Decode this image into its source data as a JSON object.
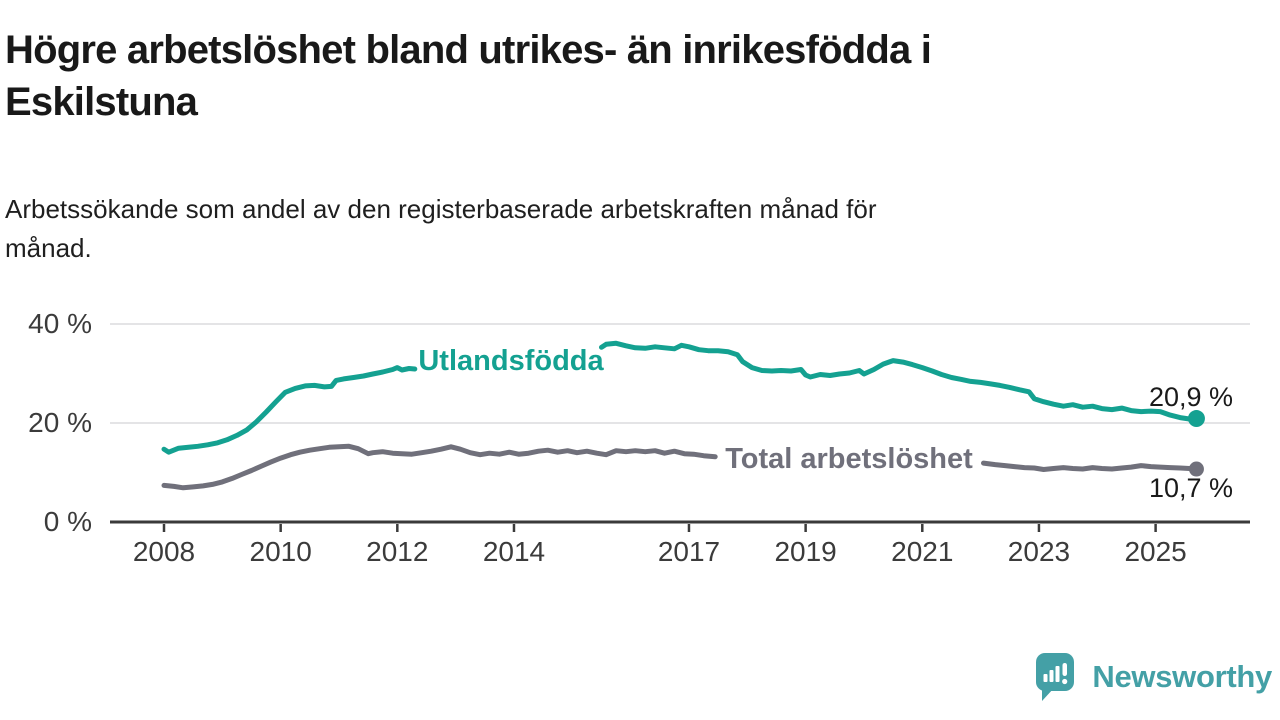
{
  "header": {
    "title_lines": [
      "Högre arbetslöshet bland utrikes- än inrikesfödda i",
      "Eskilstuna"
    ],
    "subtitle_lines": [
      "Arbetssökande som andel av den registerbaserade arbetskraften månad för",
      "månad."
    ]
  },
  "footer": {
    "brand": "Newsworthy",
    "brand_color": "#44a0a6",
    "icon": "newsworthy-speech-bubble-chart-icon"
  },
  "chart_data": {
    "type": "line",
    "unit": "%",
    "title": "Högre arbetslöshet bland utrikes- än inrikesfödda i Eskilstuna",
    "subtitle": "Arbetssökande som andel av den registerbaserade arbetskraften månad för månad.",
    "legend_position": "inline-labels",
    "grid": true,
    "x_axis": {
      "range_years": [
        2007.1,
        2026.6
      ],
      "ticks": [
        {
          "label": "2008",
          "year": 2008
        },
        {
          "label": "2010",
          "year": 2010
        },
        {
          "label": "2012",
          "year": 2012
        },
        {
          "label": "2014",
          "year": 2014
        },
        {
          "label": "2017",
          "year": 2017
        },
        {
          "label": "2019",
          "year": 2019
        },
        {
          "label": "2021",
          "year": 2021
        },
        {
          "label": "2023",
          "year": 2023
        },
        {
          "label": "2025",
          "year": 2025
        }
      ]
    },
    "y_axis": {
      "range": [
        0,
        44
      ],
      "ticks": [
        {
          "label": "0 %",
          "value": 0
        },
        {
          "label": "20 %",
          "value": 20
        },
        {
          "label": "40 %",
          "value": 40
        }
      ]
    },
    "series": [
      {
        "name": "Utlandsfödda",
        "color": "#14a191",
        "end_label": "20,9 %",
        "end_value": 20.9,
        "segments": [
          [
            [
              2008.0,
              14.7
            ],
            [
              2008.08,
              14.1
            ],
            [
              2008.25,
              14.9
            ],
            [
              2008.42,
              15.1
            ],
            [
              2008.58,
              15.3
            ],
            [
              2008.75,
              15.6
            ],
            [
              2008.92,
              16.0
            ],
            [
              2009.08,
              16.6
            ],
            [
              2009.25,
              17.5
            ],
            [
              2009.42,
              18.6
            ],
            [
              2009.58,
              20.2
            ],
            [
              2009.75,
              22.2
            ],
            [
              2009.92,
              24.3
            ],
            [
              2010.08,
              26.2
            ],
            [
              2010.25,
              27.0
            ],
            [
              2010.42,
              27.5
            ],
            [
              2010.58,
              27.6
            ],
            [
              2010.75,
              27.3
            ],
            [
              2010.87,
              27.4
            ],
            [
              2010.95,
              28.6
            ],
            [
              2011.08,
              28.9
            ],
            [
              2011.25,
              29.2
            ],
            [
              2011.42,
              29.5
            ],
            [
              2011.58,
              29.9
            ],
            [
              2011.75,
              30.3
            ],
            [
              2011.92,
              30.8
            ],
            [
              2012.0,
              31.2
            ],
            [
              2012.08,
              30.7
            ],
            [
              2012.2,
              31.0
            ],
            [
              2012.3,
              30.9
            ]
          ],
          [
            [
              2015.5,
              35.3
            ],
            [
              2015.58,
              35.9
            ],
            [
              2015.75,
              36.1
            ],
            [
              2015.92,
              35.6
            ],
            [
              2016.08,
              35.2
            ],
            [
              2016.25,
              35.1
            ],
            [
              2016.42,
              35.4
            ],
            [
              2016.58,
              35.2
            ],
            [
              2016.75,
              35.0
            ],
            [
              2016.87,
              35.7
            ],
            [
              2017.0,
              35.4
            ],
            [
              2017.17,
              34.8
            ],
            [
              2017.33,
              34.6
            ],
            [
              2017.5,
              34.6
            ],
            [
              2017.67,
              34.4
            ],
            [
              2017.83,
              33.8
            ],
            [
              2017.92,
              32.4
            ],
            [
              2018.08,
              31.2
            ],
            [
              2018.25,
              30.6
            ],
            [
              2018.42,
              30.5
            ],
            [
              2018.58,
              30.6
            ],
            [
              2018.75,
              30.5
            ],
            [
              2018.92,
              30.8
            ],
            [
              2019.0,
              29.7
            ],
            [
              2019.08,
              29.3
            ],
            [
              2019.25,
              29.8
            ],
            [
              2019.42,
              29.6
            ],
            [
              2019.58,
              29.9
            ],
            [
              2019.75,
              30.1
            ],
            [
              2019.92,
              30.6
            ],
            [
              2020.0,
              29.9
            ],
            [
              2020.17,
              30.8
            ],
            [
              2020.33,
              31.9
            ],
            [
              2020.5,
              32.6
            ],
            [
              2020.67,
              32.3
            ],
            [
              2020.83,
              31.8
            ],
            [
              2021.0,
              31.2
            ],
            [
              2021.17,
              30.5
            ],
            [
              2021.33,
              29.8
            ],
            [
              2021.5,
              29.2
            ],
            [
              2021.67,
              28.8
            ],
            [
              2021.83,
              28.4
            ],
            [
              2022.0,
              28.2
            ],
            [
              2022.17,
              27.9
            ],
            [
              2022.33,
              27.6
            ],
            [
              2022.5,
              27.2
            ],
            [
              2022.67,
              26.7
            ],
            [
              2022.83,
              26.3
            ],
            [
              2022.92,
              24.9
            ],
            [
              2023.08,
              24.3
            ],
            [
              2023.25,
              23.8
            ],
            [
              2023.42,
              23.4
            ],
            [
              2023.58,
              23.7
            ],
            [
              2023.75,
              23.2
            ],
            [
              2023.92,
              23.4
            ],
            [
              2024.08,
              22.9
            ],
            [
              2024.25,
              22.7
            ],
            [
              2024.42,
              23.0
            ],
            [
              2024.58,
              22.5
            ],
            [
              2024.75,
              22.3
            ],
            [
              2024.92,
              22.4
            ],
            [
              2025.08,
              22.3
            ],
            [
              2025.25,
              21.6
            ],
            [
              2025.42,
              21.1
            ],
            [
              2025.58,
              20.8
            ],
            [
              2025.7,
              20.9
            ]
          ]
        ]
      },
      {
        "name": "Total arbetslöshet",
        "color": "#70707b",
        "end_label": "10,7 %",
        "end_value": 10.7,
        "segments": [
          [
            [
              2008.0,
              7.4
            ],
            [
              2008.17,
              7.2
            ],
            [
              2008.33,
              6.9
            ],
            [
              2008.5,
              7.1
            ],
            [
              2008.67,
              7.3
            ],
            [
              2008.83,
              7.6
            ],
            [
              2009.0,
              8.1
            ],
            [
              2009.17,
              8.8
            ],
            [
              2009.33,
              9.6
            ],
            [
              2009.5,
              10.4
            ],
            [
              2009.67,
              11.3
            ],
            [
              2009.83,
              12.1
            ],
            [
              2010.0,
              12.9
            ],
            [
              2010.17,
              13.6
            ],
            [
              2010.33,
              14.1
            ],
            [
              2010.5,
              14.5
            ],
            [
              2010.67,
              14.8
            ],
            [
              2010.83,
              15.1
            ],
            [
              2011.0,
              15.2
            ],
            [
              2011.17,
              15.3
            ],
            [
              2011.33,
              14.8
            ],
            [
              2011.5,
              13.8
            ],
            [
              2011.58,
              14.0
            ],
            [
              2011.75,
              14.2
            ],
            [
              2011.92,
              13.9
            ],
            [
              2012.08,
              13.8
            ],
            [
              2012.25,
              13.7
            ],
            [
              2012.42,
              14.0
            ],
            [
              2012.58,
              14.3
            ],
            [
              2012.75,
              14.7
            ],
            [
              2012.92,
              15.2
            ],
            [
              2013.08,
              14.7
            ],
            [
              2013.25,
              14.0
            ],
            [
              2013.42,
              13.6
            ],
            [
              2013.58,
              13.9
            ],
            [
              2013.75,
              13.7
            ],
            [
              2013.92,
              14.1
            ],
            [
              2014.08,
              13.7
            ],
            [
              2014.25,
              13.9
            ],
            [
              2014.42,
              14.3
            ],
            [
              2014.58,
              14.5
            ],
            [
              2014.75,
              14.1
            ],
            [
              2014.92,
              14.4
            ],
            [
              2015.08,
              14.0
            ],
            [
              2015.25,
              14.3
            ],
            [
              2015.42,
              13.9
            ],
            [
              2015.58,
              13.6
            ],
            [
              2015.75,
              14.4
            ],
            [
              2015.92,
              14.2
            ],
            [
              2016.08,
              14.4
            ],
            [
              2016.25,
              14.2
            ],
            [
              2016.42,
              14.4
            ],
            [
              2016.58,
              13.9
            ],
            [
              2016.75,
              14.3
            ],
            [
              2016.92,
              13.8
            ],
            [
              2017.08,
              13.7
            ],
            [
              2017.25,
              13.4
            ],
            [
              2017.45,
              13.2
            ]
          ],
          [
            [
              2022.05,
              11.9
            ],
            [
              2022.25,
              11.6
            ],
            [
              2022.42,
              11.4
            ],
            [
              2022.58,
              11.2
            ],
            [
              2022.75,
              11.0
            ],
            [
              2022.92,
              10.9
            ],
            [
              2023.08,
              10.6
            ],
            [
              2023.25,
              10.8
            ],
            [
              2023.42,
              11.0
            ],
            [
              2023.58,
              10.8
            ],
            [
              2023.75,
              10.7
            ],
            [
              2023.92,
              11.0
            ],
            [
              2024.08,
              10.8
            ],
            [
              2024.25,
              10.7
            ],
            [
              2024.42,
              10.9
            ],
            [
              2024.58,
              11.1
            ],
            [
              2024.75,
              11.4
            ],
            [
              2024.92,
              11.2
            ],
            [
              2025.08,
              11.1
            ],
            [
              2025.25,
              11.0
            ],
            [
              2025.42,
              10.9
            ],
            [
              2025.58,
              10.8
            ],
            [
              2025.7,
              10.7
            ]
          ]
        ]
      }
    ]
  }
}
